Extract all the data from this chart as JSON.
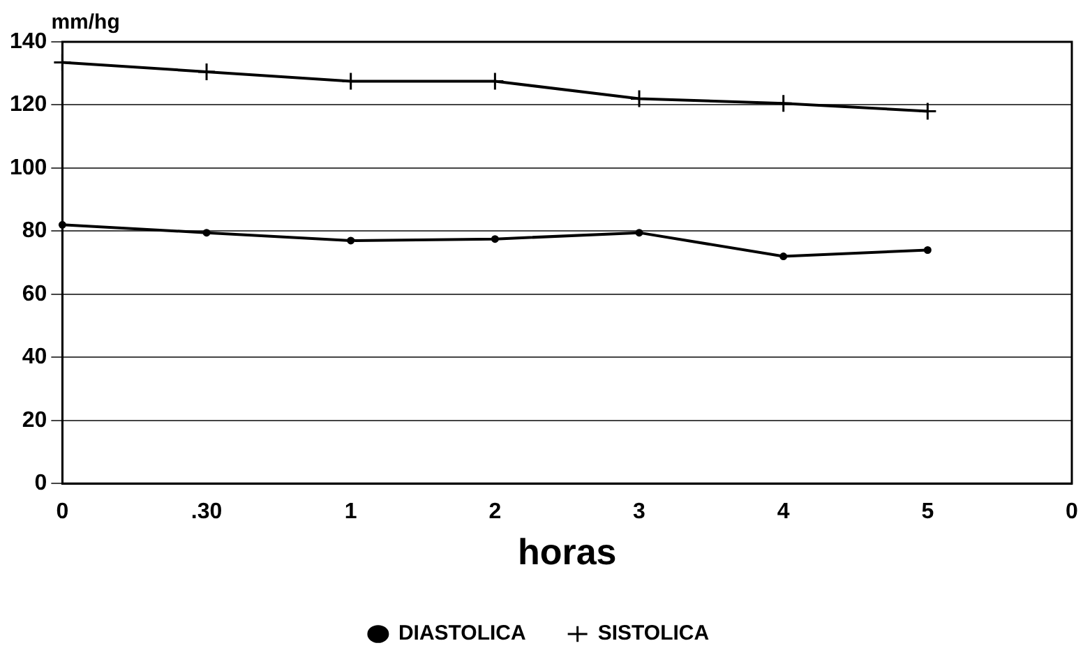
{
  "chart_data": {
    "type": "line",
    "xlabel": "horas",
    "ylabel": "mm/hg",
    "categories": [
      "0",
      ".30",
      "1",
      "2",
      "3",
      "4",
      "5",
      "0"
    ],
    "series": [
      {
        "name": "DIASTOLICA",
        "color": "#000000",
        "marker": "circle",
        "values": [
          82,
          79.5,
          77,
          77.5,
          79.5,
          72,
          74,
          null
        ]
      },
      {
        "name": "SISTOLICA",
        "color": "#000000",
        "marker": "cross",
        "values": [
          133.5,
          130.5,
          127.5,
          127.5,
          122,
          120.5,
          118,
          null
        ]
      }
    ],
    "ylim": [
      0,
      140
    ],
    "yticks": [
      0,
      20,
      40,
      60,
      80,
      100,
      120,
      140
    ],
    "grid": "y",
    "legend": "bottom",
    "line_style": "solid"
  }
}
